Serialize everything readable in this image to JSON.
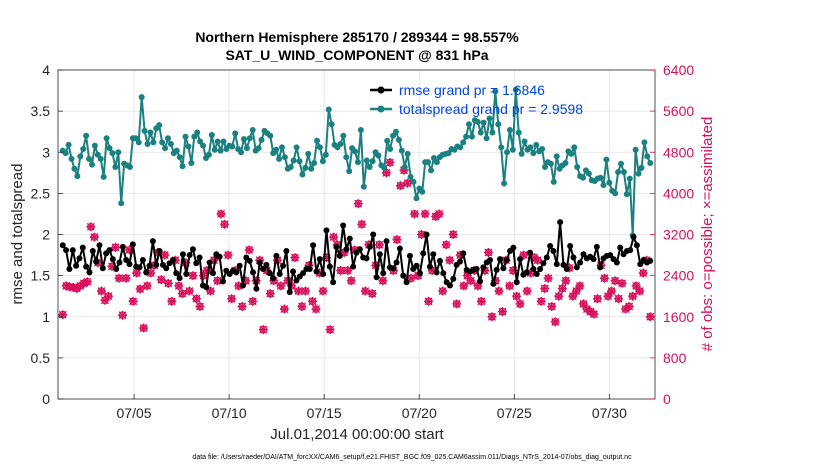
{
  "colors": {
    "rmse": "#000000",
    "spread": "#1a8080",
    "obs": "#d6105a",
    "legend_text": "#0044dd",
    "grid": "#e2e2e2",
    "axis": "#262626"
  },
  "chart_data": {
    "type": "line",
    "title_line1": "Northern Hemisphere 285170 / 289344 = 98.557%",
    "title_line2": "SAT_U_WIND_COMPONENT @ 831 hPa",
    "xlabel": "Jul.01,2014 00:00:00 start",
    "ylabel": "rmse and totalspread",
    "ylabel_right": "# of obs: o=possible; ×=assimilated",
    "xlim": [
      0.5,
      31.9
    ],
    "ylim": [
      0,
      4
    ],
    "ylim_right": [
      0,
      6400
    ],
    "x_ticks": [
      4.5,
      9.5,
      14.5,
      19.5,
      24.5,
      29.5
    ],
    "x_tick_labels": [
      "07/05",
      "07/10",
      "07/15",
      "07/20",
      "07/25",
      "07/30"
    ],
    "y_ticks": [
      0,
      0.5,
      1,
      1.5,
      2,
      2.5,
      3,
      3.5,
      4
    ],
    "y_tick_labels": [
      "0",
      "0.5",
      "1",
      "1.5",
      "2",
      "2.5",
      "3",
      "3.5",
      "4"
    ],
    "y_right_ticks": [
      0,
      800,
      1600,
      2400,
      3200,
      4000,
      4800,
      5600,
      6400
    ],
    "y_right_tick_labels": [
      "0",
      "800",
      "1600",
      "2400",
      "3200",
      "4000",
      "4800",
      "5600",
      "6400"
    ],
    "legend": [
      "rmse grand pr = 1.6846",
      "totalspread grand pr = 2.9598"
    ],
    "footnote": "data file: /Users/raeder/DAI/ATM_forcXX/CAM6_setup/f.e21.FHIST_BGC.f09_025.CAM6assim.011/Diags_NTrS_2014-07/obs_diag_output.nc",
    "series": [
      {
        "name": "rmse",
        "values": [
          1.87,
          1.81,
          1.58,
          1.81,
          1.62,
          1.71,
          1.84,
          1.61,
          1.54,
          1.8,
          1.67,
          1.87,
          1.59,
          1.77,
          1.81,
          1.7,
          1.58,
          1.66,
          1.85,
          1.69,
          1.64,
          1.88,
          1.61,
          1.6,
          1.69,
          1.54,
          1.62,
          1.92,
          1.63,
          1.8,
          1.63,
          1.59,
          1.65,
          1.69,
          1.53,
          1.47,
          1.76,
          1.52,
          1.75,
          1.82,
          1.65,
          1.72,
          1.38,
          1.36,
          1.66,
          1.53,
          1.76,
          1.73,
          1.43,
          1.56,
          1.52,
          1.56,
          1.54,
          1.62,
          1.38,
          1.72,
          1.68,
          1.54,
          1.34,
          1.66,
          1.58,
          1.63,
          1.53,
          1.47,
          1.74,
          1.52,
          1.62,
          1.8,
          1.3,
          1.55,
          1.44,
          1.49,
          1.53,
          1.58,
          1.58,
          1.87,
          1.55,
          1.7,
          1.52,
          2.05,
          1.61,
          1.42,
          1.85,
          1.74,
          2.11,
          1.82,
          1.95,
          1.61,
          1.78,
          1.82,
          1.72,
          1.71,
          1.85,
          2.0,
          1.48,
          1.76,
          1.53,
          1.92,
          1.6,
          1.59,
          1.66,
          1.83,
          1.5,
          1.42,
          1.74,
          1.58,
          1.62,
          1.53,
          1.77,
          2.0,
          1.61,
          1.76,
          1.54,
          1.68,
          1.53,
          1.42,
          1.38,
          1.46,
          1.63,
          1.67,
          1.77,
          1.57,
          1.55,
          1.57,
          1.58,
          1.43,
          1.6,
          1.66,
          1.69,
          1.4,
          1.57,
          1.7,
          1.59,
          1.69,
          1.8,
          1.84,
          1.42,
          1.7,
          1.51,
          1.54,
          1.78,
          1.58,
          1.52,
          1.58,
          1.65,
          1.72,
          1.86,
          1.8,
          1.64,
          2.15,
          1.63,
          1.58,
          1.86,
          1.72,
          1.6,
          1.66,
          1.76,
          1.71,
          1.73,
          1.7,
          1.85,
          1.6,
          1.71,
          1.74,
          1.75,
          1.7,
          1.66,
          1.84,
          1.76,
          1.8,
          1.81,
          1.97,
          1.87,
          1.64,
          1.69,
          1.66,
          1.68
        ],
        "color": "#000000"
      },
      {
        "name": "totalspread",
        "values": [
          3.02,
          2.99,
          3.09,
          2.92,
          2.8,
          2.71,
          2.95,
          3.04,
          3.2,
          2.92,
          2.85,
          3.08,
          2.97,
          2.92,
          2.7,
          3.17,
          3.05,
          2.99,
          2.82,
          3.0,
          2.38,
          2.86,
          2.84,
          2.82,
          3.17,
          3.17,
          3.12,
          3.67,
          3.26,
          3.1,
          3.24,
          3.12,
          3.29,
          3.33,
          3.12,
          3.05,
          3.17,
          3.1,
          2.99,
          3.02,
          2.94,
          2.83,
          3.19,
          3.07,
          2.87,
          3.19,
          3.24,
          3.13,
          3.08,
          2.93,
          2.97,
          3.21,
          3.03,
          3.13,
          3.02,
          3.13,
          3.04,
          3.08,
          3.07,
          3.23,
          3.04,
          3.0,
          3.16,
          3.05,
          3.17,
          3.27,
          3.02,
          3.05,
          3.15,
          3.26,
          3.23,
          3.2,
          2.99,
          3.03,
          2.92,
          3.06,
          2.94,
          2.8,
          2.82,
          2.9,
          3.06,
          2.89,
          2.73,
          2.81,
          2.98,
          2.8,
          2.87,
          3.14,
          3.06,
          2.89,
          2.97,
          3.52,
          3.34,
          3.09,
          3.06,
          3.1,
          3.2,
          2.94,
          2.77,
          3.05,
          3.01,
          2.88,
          3.27,
          2.58,
          2.9,
          2.82,
          2.89,
          3.0,
          2.96,
          2.84,
          2.81,
          3.14,
          3.04,
          3.2,
          3.25,
          3.15,
          3.02,
          2.82,
          2.98,
          2.7,
          2.64,
          2.44,
          2.56,
          2.52,
          2.88,
          2.88,
          2.78,
          2.93,
          2.88,
          2.94,
          2.97,
          2.98,
          2.99,
          3.04,
          3.03,
          3.07,
          3.06,
          3.12,
          3.19,
          3.34,
          3.19,
          3.39,
          3.37,
          3.24,
          3.36,
          3.17,
          3.41,
          3.24,
          3.74,
          3.34,
          3.06,
          2.62,
          3.0,
          3.27,
          3.03,
          3.76,
          3.24,
          2.98,
          3.13,
          3.03,
          3.06,
          2.99,
          3.09,
          3.01,
          3.04,
          2.82,
          2.88,
          2.86,
          2.64,
          2.95,
          2.8,
          2.84,
          2.87,
          3.01,
          2.98,
          3.06,
          2.82,
          2.71,
          2.69,
          2.78,
          2.74,
          2.66,
          2.65,
          2.68,
          2.69,
          2.6,
          2.91,
          2.63,
          2.53,
          2.5,
          2.76,
          2.86,
          2.76,
          2.49,
          2.68,
          1.99,
          3.03,
          2.74,
          2.81,
          3.12,
          2.95,
          2.87
        ],
        "color": "#1a8080"
      },
      {
        "name": "obs_possible",
        "values": [
          1640,
          2200,
          2180,
          2170,
          2150,
          2200,
          2250,
          2280,
          3350,
          3150,
          2650,
          2100,
          1920,
          2000,
          2580,
          2950,
          2350,
          1630,
          2350,
          2900,
          1900,
          2450,
          2140,
          1380,
          2200,
          2450,
          2600,
          2850,
          2320,
          2800,
          2250,
          1900,
          2700,
          2200,
          2050,
          2650,
          2100,
          2400,
          1950,
          1800,
          2400,
          2500,
          2100,
          2700,
          2300,
          3600,
          3400,
          2800,
          1950,
          2500,
          2200,
          1800,
          2300,
          2900,
          1900,
          2300,
          2700,
          1350,
          2500,
          2050,
          2300,
          2700,
          2200,
          1750,
          2300,
          2200,
          2750,
          2100,
          1800,
          2100,
          2600,
          1900,
          1750,
          2450,
          2100,
          2750,
          1350,
          3150,
          3000,
          2500,
          2850,
          2500,
          2300,
          2900,
          3800,
          3400,
          2100,
          3000,
          2050,
          2600,
          3000,
          2300,
          4400,
          4600,
          2500,
          3100,
          4150,
          4450,
          4200,
          2350,
          3600,
          2400,
          3200,
          3600,
          1900,
          2500,
          3550,
          3600,
          2100,
          3000,
          2700,
          3200,
          1850,
          2800,
          2200,
          2400,
          2300,
          2500,
          2200,
          1900,
          2500,
          2850,
          1600,
          2300,
          2100,
          1700,
          2700,
          2200,
          2500,
          2000,
          1850,
          2800,
          2100,
          2450,
          2750,
          2700,
          1900,
          2150,
          2350,
          1800,
          1500,
          2000,
          2150,
          2300,
          2550,
          2000,
          2100,
          2200,
          1850,
          1750,
          1700,
          1650,
          1950,
          2600,
          2350,
          2000,
          2100,
          2300,
          1950,
          2250,
          1750,
          1800,
          2000,
          2200,
          2100,
          2450,
          2700,
          1600
        ],
        "color": "#d6105a"
      }
    ]
  }
}
